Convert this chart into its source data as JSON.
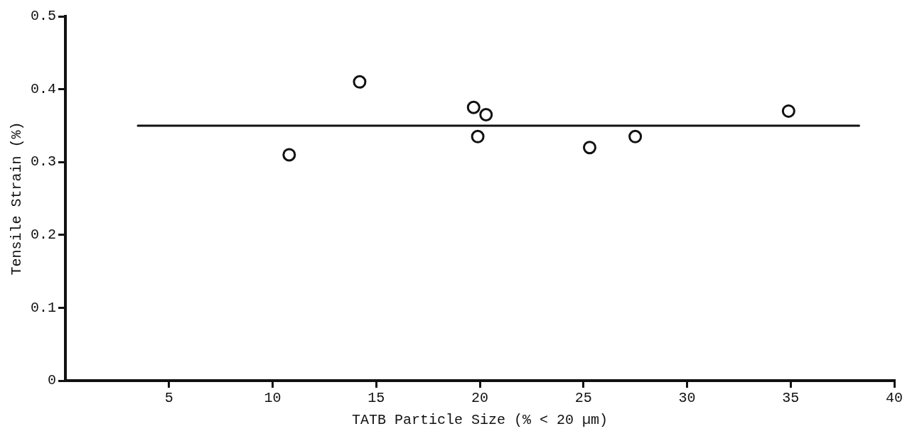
{
  "chart_data": {
    "type": "scatter",
    "xlabel": "TATB Particle Size (% < 20 µm)",
    "ylabel": "Tensile Strain (%)",
    "xlim": [
      0,
      40
    ],
    "ylim": [
      0,
      0.5
    ],
    "xticks": [
      5,
      10,
      15,
      20,
      25,
      30,
      35,
      40
    ],
    "yticks": [
      0,
      0.1,
      0.2,
      0.3,
      0.4,
      0.5
    ],
    "grid": false,
    "series": [
      {
        "type": "scatter",
        "marker": "circle",
        "color": "#111111",
        "x": [
          10.8,
          14.2,
          19.7,
          20.3,
          19.9,
          25.3,
          27.5,
          34.9
        ],
        "values": [
          0.31,
          0.41,
          0.375,
          0.365,
          0.335,
          0.32,
          0.335,
          0.37
        ]
      },
      {
        "type": "line",
        "color": "#111111",
        "x": [
          3.5,
          38.3
        ],
        "values": [
          0.35,
          0.35
        ]
      }
    ]
  }
}
